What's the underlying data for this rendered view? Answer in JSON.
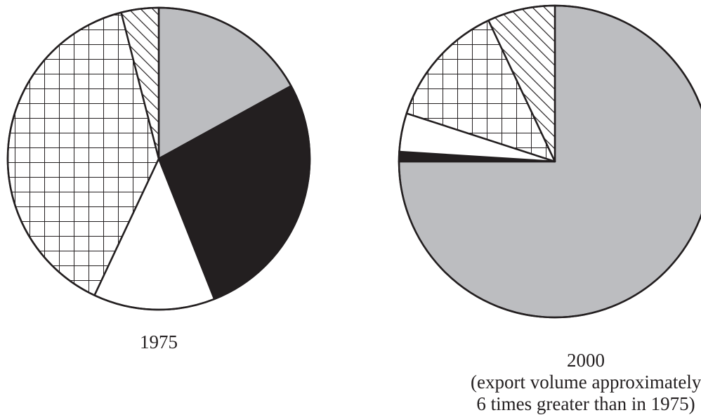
{
  "chart_data": [
    {
      "type": "pie",
      "label": "1975",
      "note": "",
      "slices": [
        {
          "pattern": "gray",
          "value": 17
        },
        {
          "pattern": "black",
          "value": 27
        },
        {
          "pattern": "white",
          "value": 13
        },
        {
          "pattern": "grid",
          "value": 39
        },
        {
          "pattern": "hatch",
          "value": 4
        }
      ],
      "colors": {
        "gray": "#bcbdc0",
        "black": "#231f20",
        "white": "#ffffff",
        "stroke": "#231f20"
      }
    },
    {
      "type": "pie",
      "label": "2000",
      "note": "(export volume approximately 6 times greater than in 1975)",
      "slices": [
        {
          "pattern": "gray",
          "value": 75
        },
        {
          "pattern": "black",
          "value": 1
        },
        {
          "pattern": "white",
          "value": 4
        },
        {
          "pattern": "grid",
          "value": 13
        },
        {
          "pattern": "hatch",
          "value": 7
        }
      ],
      "colors": {
        "gray": "#bcbdc0",
        "black": "#231f20",
        "white": "#ffffff",
        "stroke": "#231f20"
      }
    }
  ]
}
